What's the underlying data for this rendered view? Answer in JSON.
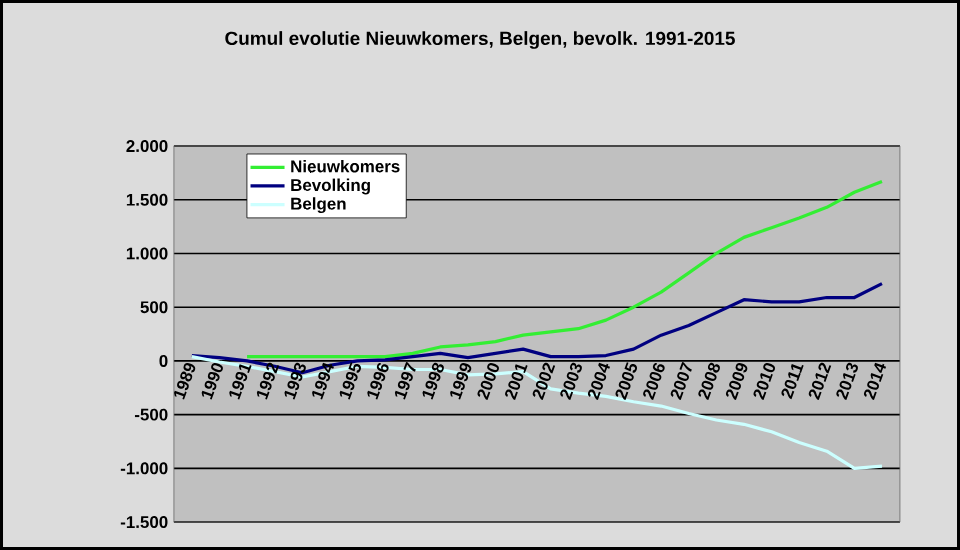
{
  "chart_data": {
    "type": "line",
    "title": "Cumul evolutie Nieuwkomers, Belgen, bevolk. 1991-2015",
    "categories": [
      "1989",
      "1990",
      "1991",
      "1992",
      "1993",
      "1994",
      "1995",
      "1996",
      "1997",
      "1998",
      "1999",
      "2000",
      "2001",
      "2002",
      "2003",
      "2004",
      "2005",
      "2006",
      "2007",
      "2008",
      "2009",
      "2010",
      "2011",
      "2012",
      "2013",
      "2014"
    ],
    "series": [
      {
        "name": "Nieuwkomers",
        "color": "#33ee33",
        "values": [
          null,
          null,
          40,
          40,
          40,
          40,
          40,
          40,
          70,
          130,
          150,
          180,
          240,
          270,
          300,
          380,
          500,
          640,
          820,
          1000,
          1150,
          1240,
          1330,
          1430,
          1570,
          1670
        ]
      },
      {
        "name": "Bevolking",
        "color": "#000080",
        "values": [
          50,
          30,
          0,
          -50,
          -110,
          -40,
          0,
          10,
          40,
          70,
          30,
          70,
          110,
          40,
          40,
          50,
          110,
          240,
          330,
          450,
          570,
          550,
          550,
          590,
          590,
          720
        ]
      },
      {
        "name": "Belgen",
        "color": "#ccffff",
        "values": [
          40,
          -10,
          -50,
          -100,
          -150,
          -100,
          -50,
          -60,
          -80,
          -80,
          -130,
          -120,
          -100,
          -260,
          -300,
          -330,
          -380,
          -420,
          -490,
          -550,
          -590,
          -660,
          -760,
          -840,
          -1000,
          -980
        ]
      }
    ],
    "ylim": [
      -1500,
      2000
    ],
    "yticks": [
      {
        "value": -1500,
        "label": "-1.500"
      },
      {
        "value": -1000,
        "label": "-1.000"
      },
      {
        "value": -500,
        "label": "-500"
      },
      0,
      500,
      {
        "value": 1000,
        "label": "1.000"
      },
      {
        "value": 1500,
        "label": "1.500"
      },
      {
        "value": 2000,
        "label": "2.000"
      }
    ],
    "grid": "y",
    "legend": "top left",
    "marker": "none",
    "line_style": "solid"
  }
}
